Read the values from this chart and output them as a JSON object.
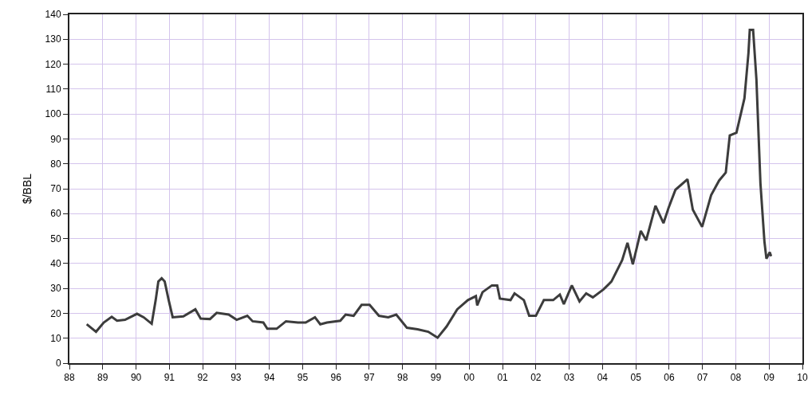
{
  "chart_data": {
    "type": "line",
    "ylabel": "$/BBL",
    "xlim": [
      1988,
      2010
    ],
    "xticks": [
      {
        "value": 1988,
        "label": "88"
      },
      {
        "value": 1989,
        "label": "89"
      },
      {
        "value": 1990,
        "label": "90"
      },
      {
        "value": 1991,
        "label": "91"
      },
      {
        "value": 1992,
        "label": "92"
      },
      {
        "value": 1993,
        "label": "93"
      },
      {
        "value": 1994,
        "label": "94"
      },
      {
        "value": 1995,
        "label": "95"
      },
      {
        "value": 1996,
        "label": "96"
      },
      {
        "value": 1997,
        "label": "97"
      },
      {
        "value": 1998,
        "label": "98"
      },
      {
        "value": 1999,
        "label": "99"
      },
      {
        "value": 2000,
        "label": "00"
      },
      {
        "value": 2001,
        "label": "01"
      },
      {
        "value": 2002,
        "label": "02"
      },
      {
        "value": 2003,
        "label": "03"
      },
      {
        "value": 2004,
        "label": "04"
      },
      {
        "value": 2005,
        "label": "05"
      },
      {
        "value": 2006,
        "label": "06"
      },
      {
        "value": 2007,
        "label": "07"
      },
      {
        "value": 2008,
        "label": "08"
      },
      {
        "value": 2009,
        "label": "09"
      },
      {
        "value": 2010,
        "label": "10"
      }
    ],
    "ylim": [
      0,
      140
    ],
    "yticks": [
      0,
      10,
      20,
      30,
      40,
      50,
      60,
      70,
      80,
      90,
      100,
      110,
      120,
      130,
      140
    ],
    "grid": true,
    "marker": "none",
    "line_style": "solid",
    "x": [
      1988.52,
      1988.8,
      1989.03,
      1989.27,
      1989.43,
      1989.67,
      1990.03,
      1990.23,
      1990.47,
      1990.59,
      1990.67,
      1990.77,
      1990.86,
      1990.98,
      1991.1,
      1991.42,
      1991.78,
      1991.94,
      1992.22,
      1992.42,
      1992.78,
      1993.02,
      1993.34,
      1993.5,
      1993.82,
      1993.94,
      1994.22,
      1994.5,
      1994.86,
      1995.09,
      1995.37,
      1995.53,
      1995.73,
      1996.13,
      1996.29,
      1996.53,
      1996.77,
      1997.01,
      1997.29,
      1997.57,
      1997.81,
      1998.13,
      1998.45,
      1998.77,
      1999.05,
      1999.32,
      1999.64,
      1999.96,
      2000.2,
      2000.24,
      2000.4,
      2000.68,
      2000.84,
      2000.92,
      2001.24,
      2001.36,
      2001.64,
      2001.8,
      2002.0,
      2002.24,
      2002.52,
      2002.72,
      2002.84,
      2003.08,
      2003.31,
      2003.51,
      2003.71,
      2004.03,
      2004.27,
      2004.59,
      2004.75,
      2004.91,
      2005.15,
      2005.31,
      2005.59,
      2005.83,
      2005.99,
      2006.19,
      2006.55,
      2006.71,
      2006.99,
      2007.26,
      2007.5,
      2007.7,
      2007.82,
      2008.02,
      2008.26,
      2008.38,
      2008.42,
      2008.52,
      2008.62,
      2008.74,
      2008.86,
      2008.92,
      2009.02,
      2009.06
    ],
    "series": [
      {
        "color": "#3c3c3c",
        "values": [
          15.6,
          12.6,
          16.3,
          18.6,
          17.0,
          17.4,
          19.8,
          18.4,
          15.8,
          25.3,
          32.8,
          34.1,
          32.8,
          25.3,
          18.4,
          18.8,
          21.6,
          17.9,
          17.7,
          20.2,
          19.5,
          17.4,
          19.0,
          16.8,
          16.3,
          13.8,
          13.8,
          16.8,
          16.3,
          16.3,
          18.4,
          15.6,
          16.3,
          17.0,
          19.5,
          19.0,
          23.4,
          23.4,
          19.0,
          18.4,
          19.5,
          14.2,
          13.6,
          12.6,
          10.2,
          14.7,
          21.6,
          25.3,
          26.9,
          23.2,
          28.5,
          31.2,
          31.2,
          25.9,
          25.3,
          28.0,
          25.3,
          19.0,
          19.0,
          25.3,
          25.3,
          27.5,
          23.7,
          31.2,
          24.8,
          28.0,
          26.4,
          29.6,
          32.8,
          41.3,
          48.3,
          39.7,
          53.1,
          49.3,
          63.2,
          56.2,
          62.6,
          69.6,
          73.8,
          61.6,
          54.7,
          67.4,
          73.3,
          76.5,
          91.4,
          92.5,
          106.3,
          124.4,
          133.8,
          133.8,
          113.8,
          72.2,
          48.8,
          41.9,
          44.5,
          42.9
        ]
      }
    ]
  }
}
